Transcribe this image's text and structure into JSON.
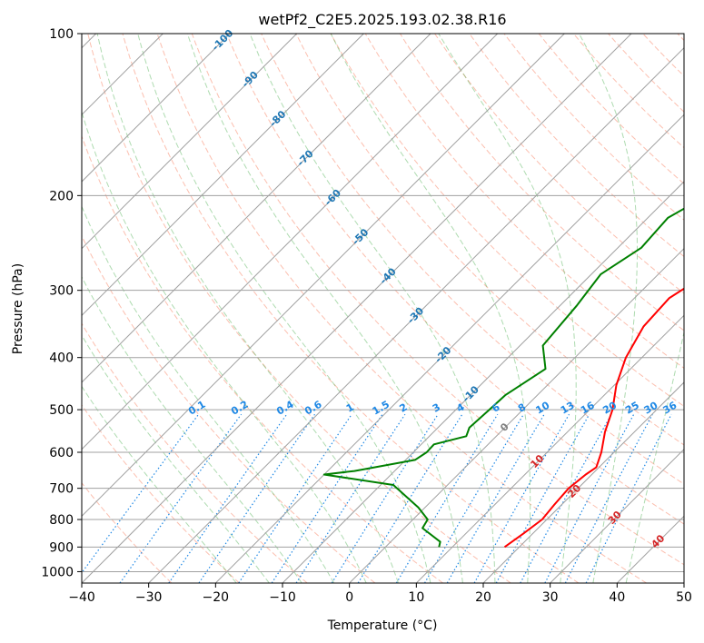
{
  "chart_data": {
    "type": "line",
    "title": "wetPf2_C2E5.2025.193.02.38.R16",
    "xlabel": "Temperature (°C)",
    "ylabel": "Pressure (hPa)",
    "xlim": [
      -40,
      50
    ],
    "ylim": [
      1050,
      100
    ],
    "y_scale": "log",
    "grid": true,
    "x_ticks": [
      -40,
      -30,
      -20,
      -10,
      0,
      10,
      20,
      30,
      40,
      50
    ],
    "y_ticks": [
      100,
      200,
      300,
      400,
      500,
      600,
      700,
      800,
      900,
      1000
    ],
    "colors": {
      "temperature": "#ff0000",
      "dewpoint": "#008000",
      "isotherm": "#a0a0a0",
      "dry_adiabat": "#fa8060",
      "moist_adiabat": "#4caf50",
      "mixing_ratio": "#1e88e5",
      "isotherm_label": "#1f77b4",
      "warm_label": "#d62728"
    },
    "series": [
      {
        "key": "temperature",
        "points": [
          [
            17.8,
            900
          ],
          [
            18.6,
            850
          ],
          [
            19.3,
            800
          ],
          [
            18.9,
            750
          ],
          [
            18.6,
            700
          ],
          [
            19.1,
            660
          ],
          [
            19.6,
            640
          ],
          [
            18.1,
            600
          ],
          [
            15.6,
            550
          ],
          [
            13.4,
            500
          ],
          [
            10.3,
            450
          ],
          [
            7.6,
            400
          ],
          [
            5.6,
            350
          ],
          [
            5.2,
            310
          ],
          [
            7.2,
            280
          ],
          [
            9.6,
            250
          ],
          [
            12.8,
            220
          ],
          [
            14.0,
            200
          ],
          [
            14.6,
            180
          ],
          [
            16.2,
            170
          ],
          [
            16.8,
            150
          ],
          [
            18.3,
            130
          ],
          [
            20.2,
            120
          ],
          [
            21.7,
            110
          ],
          [
            22.8,
            100
          ]
        ]
      },
      {
        "key": "dewpoint",
        "points": [
          [
            8.0,
            900
          ],
          [
            7.4,
            880
          ],
          [
            2.7,
            830
          ],
          [
            2.2,
            800
          ],
          [
            -1.0,
            760
          ],
          [
            -8.1,
            690
          ],
          [
            -20.0,
            660
          ],
          [
            -16.0,
            650
          ],
          [
            -8.6,
            620
          ],
          [
            -8.0,
            600
          ],
          [
            -8.1,
            580
          ],
          [
            -4.5,
            560
          ],
          [
            -5.3,
            540
          ],
          [
            -5.0,
            500
          ],
          [
            -4.8,
            470
          ],
          [
            -2.7,
            420
          ],
          [
            -6.6,
            380
          ],
          [
            -7.5,
            320
          ],
          [
            -8.6,
            280
          ],
          [
            -6.5,
            250
          ],
          [
            -7.0,
            220
          ],
          [
            -4.5,
            200
          ],
          [
            -5.8,
            170
          ],
          [
            -9.0,
            160
          ],
          [
            -8.0,
            150
          ],
          [
            -6.1,
            130
          ],
          [
            -5.0,
            110
          ],
          [
            -2.5,
            100
          ]
        ]
      }
    ],
    "isotherm_labels": [
      "-100",
      "-90",
      "-80",
      "-70",
      "-60",
      "-50",
      "-40",
      "-30",
      "-20",
      "-10",
      "0",
      "10",
      "20",
      "30",
      "40"
    ],
    "mixing_ratio_labels": [
      "0.1",
      "0.2",
      "0.4",
      "0.6",
      "1",
      "1.5",
      "2",
      "3",
      "4",
      "6",
      "8",
      "10",
      "13",
      "16",
      "20",
      "25",
      "30",
      "36"
    ]
  }
}
